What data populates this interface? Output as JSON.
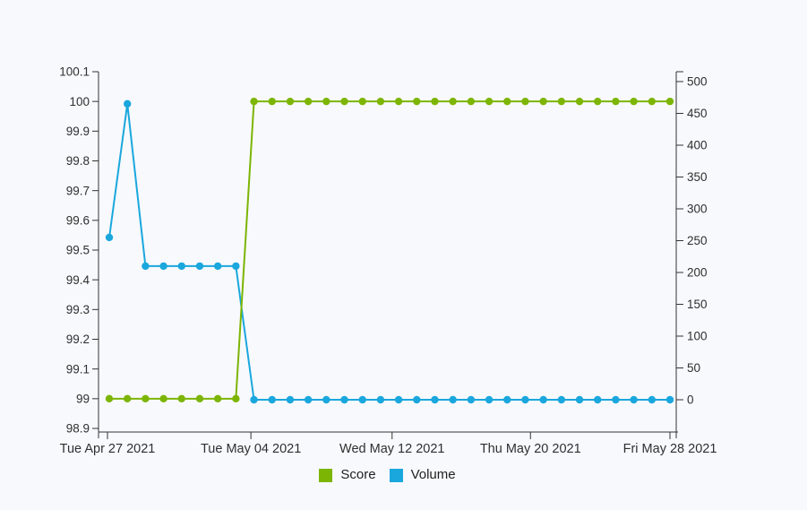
{
  "background_color": "#f8f9fd",
  "text_color": "#2f2f2f",
  "axis_color": "#333333",
  "chart_data": {
    "type": "line",
    "title": "",
    "xlabel": "",
    "ylabel_left": "",
    "ylabel_right": "",
    "grid": false,
    "legend_position": "bottom-center",
    "marker_shape": "circle",
    "x_axis": {
      "ticks": [
        {
          "label": "Tue Apr 27 2021",
          "position": 0.0
        },
        {
          "label": "Tue May 04 2021",
          "position": 0.255
        },
        {
          "label": "Wed May 12 2021",
          "position": 0.506
        },
        {
          "label": "Thu May 20 2021",
          "position": 0.752
        },
        {
          "label": "Fri May 28 2021",
          "position": 1.0
        }
      ]
    },
    "y_axis_left": {
      "min": 98.9,
      "max": 100.1,
      "tick_labels": [
        "100.1",
        "100",
        "99.9",
        "99.8",
        "99.7",
        "99.6",
        "99.5",
        "99.4",
        "99.3",
        "99.2",
        "99.1",
        "99",
        "98.9"
      ]
    },
    "y_axis_right": {
      "min": 0,
      "max": 500,
      "tick_labels": [
        "500",
        "450",
        "400",
        "350",
        "300",
        "250",
        "200",
        "150",
        "100",
        "50",
        "0"
      ]
    },
    "x": [
      "Tue Apr 27 2021",
      "Wed Apr 28 2021",
      "Thu Apr 29 2021",
      "Fri Apr 30 2021",
      "Sat May 01 2021",
      "Sun May 02 2021",
      "Mon May 03 2021",
      "Tue May 04 2021",
      "Wed May 05 2021",
      "Thu May 06 2021",
      "Fri May 07 2021",
      "Sat May 08 2021",
      "Sun May 09 2021",
      "Mon May 10 2021",
      "Tue May 11 2021",
      "Wed May 12 2021",
      "Thu May 13 2021",
      "Fri May 14 2021",
      "Sat May 15 2021",
      "Sun May 16 2021",
      "Mon May 17 2021",
      "Tue May 18 2021",
      "Wed May 19 2021",
      "Thu May 20 2021",
      "Fri May 21 2021",
      "Sat May 22 2021",
      "Sun May 23 2021",
      "Mon May 24 2021",
      "Tue May 25 2021",
      "Wed May 26 2021",
      "Thu May 27 2021",
      "Fri May 28 2021"
    ],
    "series": [
      {
        "name": "Score",
        "axis": "left",
        "color": "#7cb504",
        "values": [
          99,
          99,
          99,
          99,
          99,
          99,
          99,
          99,
          100,
          100,
          100,
          100,
          100,
          100,
          100,
          100,
          100,
          100,
          100,
          100,
          100,
          100,
          100,
          100,
          100,
          100,
          100,
          100,
          100,
          100,
          100,
          100
        ]
      },
      {
        "name": "Volume",
        "axis": "right",
        "color": "#1aa7dd",
        "values": [
          255,
          465,
          210,
          210,
          210,
          210,
          210,
          210,
          0,
          0,
          0,
          0,
          0,
          0,
          0,
          0,
          0,
          0,
          0,
          0,
          0,
          0,
          0,
          0,
          0,
          0,
          0,
          0,
          0,
          0,
          0,
          0
        ]
      }
    ]
  }
}
